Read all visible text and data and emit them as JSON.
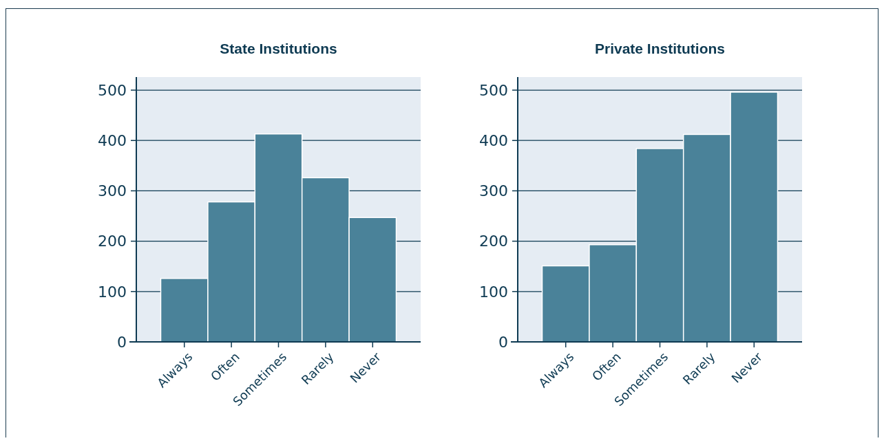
{
  "chart_data": [
    {
      "type": "bar",
      "title": "State Institutions",
      "categories": [
        "Always",
        "Often",
        "Sometimes",
        "Rarely",
        "Never"
      ],
      "values": [
        126,
        278,
        413,
        326,
        247
      ],
      "color": "#4a8299",
      "ylim": [
        0,
        526
      ],
      "yticks": [
        0,
        100,
        200,
        300,
        400,
        500
      ],
      "grid": "y"
    },
    {
      "type": "bar",
      "title": "Private Institutions",
      "categories": [
        "Always",
        "Often",
        "Sometimes",
        "Rarely",
        "Never"
      ],
      "values": [
        151,
        193,
        384,
        412,
        496
      ],
      "color": "#4a8299",
      "ylim": [
        0,
        526
      ],
      "yticks": [
        0,
        100,
        200,
        300,
        400,
        500
      ],
      "grid": "y"
    }
  ]
}
